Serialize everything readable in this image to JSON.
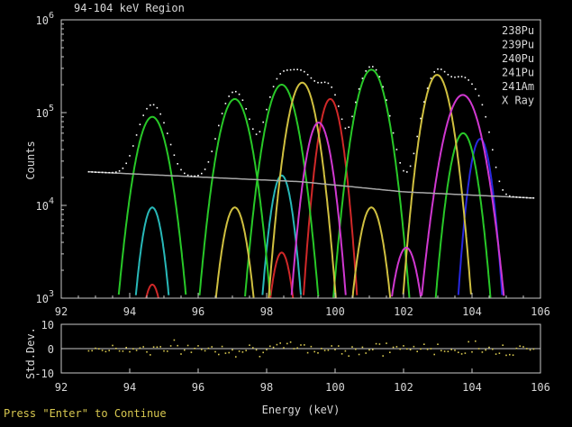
{
  "chart_data": [
    {
      "type": "line",
      "title": "94-104 keV Region",
      "xlabel": "Energy (keV)",
      "ylabel": "Counts",
      "y_scale": "log",
      "xlim": [
        92,
        106
      ],
      "ylim": [
        1000,
        1000000
      ],
      "x_ticks": [
        "92",
        "94",
        "96",
        "98",
        "100",
        "102",
        "104",
        "106"
      ],
      "y_ticks": [
        {
          "base": "10",
          "exp": "3",
          "value": 1000
        },
        {
          "base": "10",
          "exp": "4",
          "value": 10000
        },
        {
          "base": "10",
          "exp": "5",
          "value": 100000
        },
        {
          "base": "10",
          "exp": "6",
          "value": 1000000
        }
      ],
      "legend_position": "top-right",
      "series": [
        {
          "name": "238Pu",
          "color": "#d02828",
          "peaks": [
            [
              94.66,
              1400,
              0.22
            ],
            [
              98.44,
              3100,
              0.22
            ],
            [
              99.86,
              140000,
              0.25
            ]
          ]
        },
        {
          "name": "239Pu",
          "color": "#28b8b8",
          "peaks": [
            [
              94.66,
              9500,
              0.23
            ],
            [
              98.44,
              21000,
              0.23
            ]
          ]
        },
        {
          "name": "240Pu",
          "color": "#2828e0",
          "peaks": [
            [
              104.24,
              52000,
              0.23
            ]
          ]
        },
        {
          "name": "241Pu",
          "color": "#28c828",
          "peaks": [
            [
              94.66,
              90000,
              0.33
            ],
            [
              97.07,
              140000,
              0.33
            ],
            [
              98.44,
              200000,
              0.33
            ],
            [
              101.06,
              290000,
              0.33
            ],
            [
              103.74,
              60000,
              0.28
            ]
          ]
        },
        {
          "name": "241Am",
          "color": "#d0c040",
          "peaks": [
            [
              97.07,
              9500,
              0.26
            ],
            [
              99.04,
              210000,
              0.3
            ],
            [
              101.06,
              9500,
              0.26
            ],
            [
              102.98,
              255000,
              0.3
            ]
          ]
        },
        {
          "name": "X Ray",
          "color": "#d038d0",
          "peaks": [
            [
              99.52,
              78000,
              0.27
            ],
            [
              102.08,
              3500,
              0.27
            ],
            [
              103.73,
              155000,
              0.38
            ]
          ]
        }
      ],
      "background": {
        "color": "#a8a8a8",
        "x": [
          92.8,
          99.0,
          102.0,
          105.8
        ],
        "y": [
          23000,
          18000,
          14000,
          12000
        ]
      },
      "data_points": {
        "color": "#ffffff",
        "x_range": [
          92.8,
          105.8
        ],
        "step": 0.1
      }
    },
    {
      "type": "scatter",
      "ylabel": "Std.Dev.",
      "xlabel": "Energy (keV)",
      "xlim": [
        92,
        106
      ],
      "ylim": [
        -10,
        10
      ],
      "x_ticks": [
        "92",
        "94",
        "96",
        "98",
        "100",
        "102",
        "104",
        "106"
      ],
      "y_ticks": [
        "10",
        "0",
        "-10"
      ],
      "color": "#d8c850",
      "x_range": [
        92.8,
        105.8
      ],
      "step": 0.1,
      "amplitude": 2
    }
  ],
  "prompt": "Press \"Enter\" to Continue"
}
